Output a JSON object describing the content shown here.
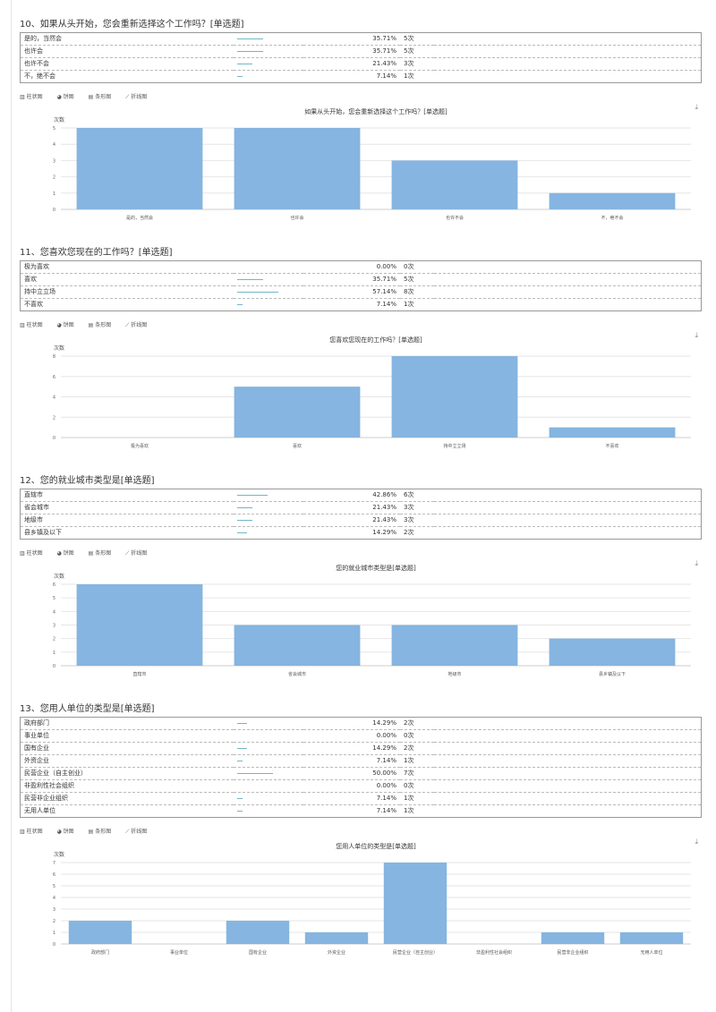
{
  "toolbar": {
    "bar": "柱状图",
    "pie": "饼图",
    "hbar": "条形图",
    "line": "折线图"
  },
  "download_icon": "download-icon",
  "questions": [
    {
      "title": "10、如果从头开始，您会重新选择这个工作吗？[单选题]",
      "rows": [
        {
          "label": "是的，当然会",
          "pct": "35.71%",
          "count": "5次",
          "share": 0.3571
        },
        {
          "label": "也许会",
          "pct": "35.71%",
          "count": "5次",
          "share": 0.3571
        },
        {
          "label": "也许不会",
          "pct": "21.43%",
          "count": "3次",
          "share": 0.2143
        },
        {
          "label": "不，绝不会",
          "pct": "7.14%",
          "count": "1次",
          "share": 0.0714
        }
      ]
    },
    {
      "title": "11、您喜欢您现在的工作吗？[单选题]",
      "rows": [
        {
          "label": "极为喜欢",
          "pct": "0.00%",
          "count": "0次",
          "share": 0
        },
        {
          "label": "喜欢",
          "pct": "35.71%",
          "count": "5次",
          "share": 0.3571
        },
        {
          "label": "持中立立场",
          "pct": "57.14%",
          "count": "8次",
          "share": 0.5714
        },
        {
          "label": "不喜欢",
          "pct": "7.14%",
          "count": "1次",
          "share": 0.0714
        }
      ]
    },
    {
      "title": "12、您的就业城市类型是[单选题]",
      "rows": [
        {
          "label": "直辖市",
          "pct": "42.86%",
          "count": "6次",
          "share": 0.4286
        },
        {
          "label": "省会城市",
          "pct": "21.43%",
          "count": "3次",
          "share": 0.2143
        },
        {
          "label": "地级市",
          "pct": "21.43%",
          "count": "3次",
          "share": 0.2143
        },
        {
          "label": "县乡镇及以下",
          "pct": "14.29%",
          "count": "2次",
          "share": 0.1429
        }
      ]
    },
    {
      "title": "13、您用人单位的类型是[单选题]",
      "rows": [
        {
          "label": "政府部门",
          "pct": "14.29%",
          "count": "2次",
          "share": 0.1429
        },
        {
          "label": "事业单位",
          "pct": "0.00%",
          "count": "0次",
          "share": 0
        },
        {
          "label": "国有企业",
          "pct": "14.29%",
          "count": "2次",
          "share": 0.1429
        },
        {
          "label": "外资企业",
          "pct": "7.14%",
          "count": "1次",
          "share": 0.0714
        },
        {
          "label": "民营企业（自主创业）",
          "pct": "50.00%",
          "count": "7次",
          "share": 0.5
        },
        {
          "label": "非盈利性社会组织",
          "pct": "0.00%",
          "count": "0次",
          "share": 0
        },
        {
          "label": "民营非企业组织",
          "pct": "7.14%",
          "count": "1次",
          "share": 0.0714
        },
        {
          "label": "无用人单位",
          "pct": "7.14%",
          "count": "1次",
          "share": 0.0714
        }
      ]
    }
  ],
  "chart_data": [
    {
      "type": "bar",
      "title": "如果从头开始，您会重新选择这个工作吗？[单选题]",
      "ylabel": "次数",
      "categories": [
        "是的，当然会",
        "也许会",
        "也许不会",
        "不，绝不会"
      ],
      "values": [
        5,
        5,
        3,
        1
      ],
      "yticks": [
        0,
        1,
        2,
        3,
        4,
        5
      ],
      "ylim": [
        0,
        5
      ],
      "color": "#85b5e0",
      "grid": true
    },
    {
      "type": "bar",
      "title": "您喜欢您现在的工作吗？[单选题]",
      "ylabel": "次数",
      "categories": [
        "极为喜欢",
        "喜欢",
        "持中立立场",
        "不喜欢"
      ],
      "values": [
        0,
        5,
        8,
        1
      ],
      "yticks": [
        0,
        2,
        4,
        6,
        8
      ],
      "ylim": [
        0,
        8
      ],
      "color": "#85b5e0",
      "grid": true
    },
    {
      "type": "bar",
      "title": "您的就业城市类型是[单选题]",
      "ylabel": "次数",
      "categories": [
        "直辖市",
        "省会城市",
        "地级市",
        "县乡镇及以下"
      ],
      "values": [
        6,
        3,
        3,
        2
      ],
      "yticks": [
        0,
        1,
        2,
        3,
        4,
        5,
        6
      ],
      "ylim": [
        0,
        6
      ],
      "color": "#85b5e0",
      "grid": true
    },
    {
      "type": "bar",
      "title": "您用人单位的类型是[单选题]",
      "ylabel": "次数",
      "categories": [
        "政府部门",
        "事业单位",
        "国有企业",
        "外资企业",
        "民营企业（自主创业）",
        "非盈利性社会组织",
        "民营非企业组织",
        "无用人单位"
      ],
      "values": [
        2,
        0,
        2,
        1,
        7,
        0,
        1,
        1
      ],
      "yticks": [
        0,
        1,
        2,
        3,
        4,
        5,
        6,
        7
      ],
      "ylim": [
        0,
        7
      ],
      "color": "#85b5e0",
      "grid": true
    }
  ]
}
